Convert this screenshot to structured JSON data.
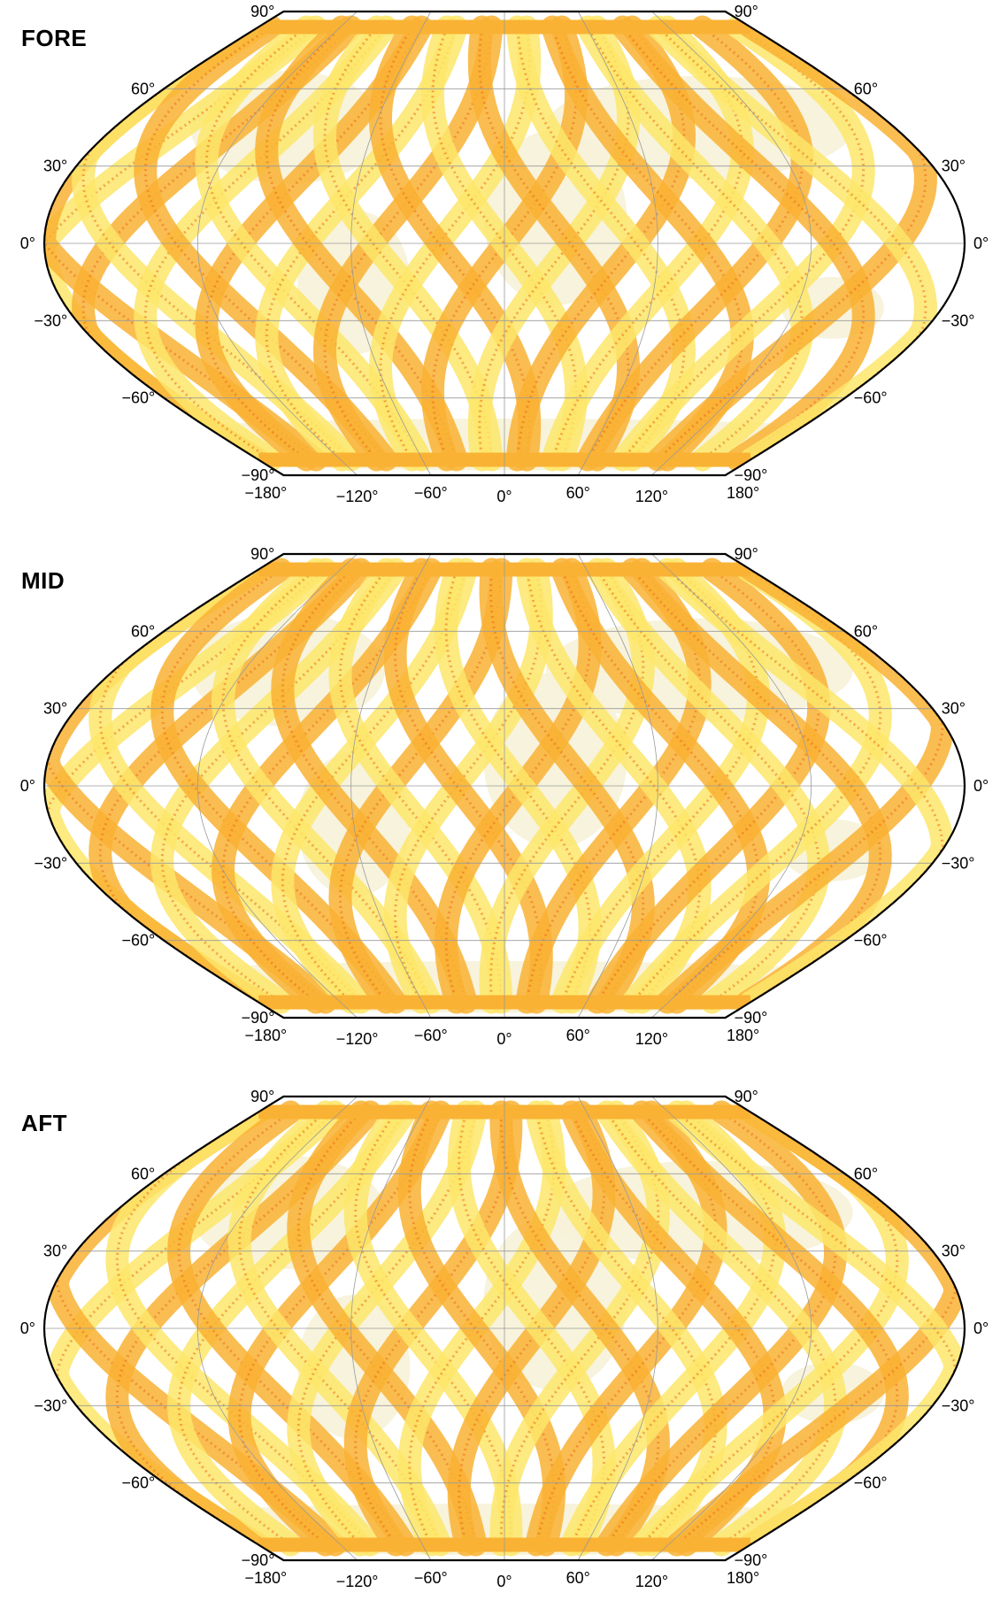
{
  "figure": {
    "panels": [
      {
        "title": "FORE"
      },
      {
        "title": "MID"
      },
      {
        "title": "AFT"
      }
    ],
    "latitude_labels": [
      "90°",
      "60°",
      "30°",
      "0°",
      "−30°",
      "−60°",
      "−90°"
    ],
    "longitude_labels": [
      "−180°",
      "−120°",
      "−60°",
      "0°",
      "60°",
      "120°",
      "180°"
    ],
    "colors": {
      "swath_light": "#fde66a",
      "swath_mid": "#f9b233",
      "swath_dark": "#ec6a1c",
      "land": "#f6f2d8",
      "grid": "#9a9a9a",
      "frame": "#000000"
    }
  }
}
